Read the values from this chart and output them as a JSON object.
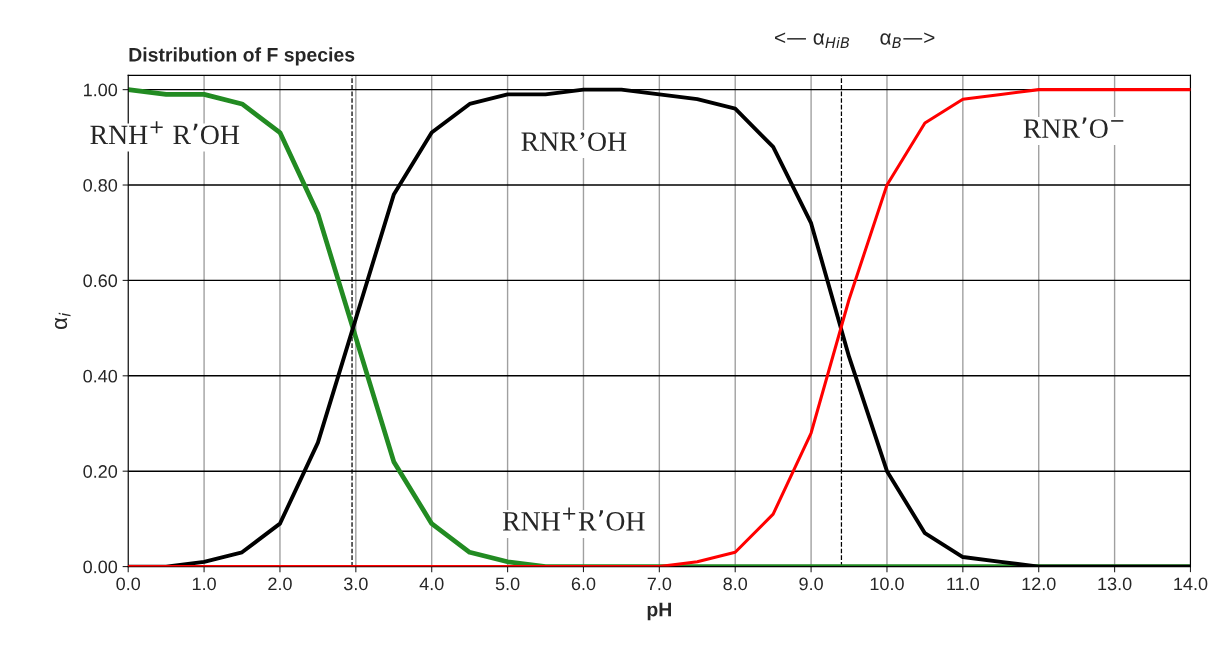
{
  "chart_data": {
    "type": "line",
    "title": "Distribution of F species",
    "xlabel": "pH",
    "ylabel": "α$_{i}$",
    "x": [
      0,
      0.5,
      1,
      1.5,
      2,
      2.5,
      3,
      3.5,
      4,
      4.5,
      5,
      5.5,
      6,
      6.5,
      7,
      7.5,
      8,
      8.5,
      9,
      9.5,
      10,
      10.5,
      11,
      11.5,
      12,
      12.5,
      13,
      13.5,
      14
    ],
    "series": [
      {
        "color": "#228b22",
        "values": [
          1.0,
          0.99,
          0.99,
          0.97,
          0.91,
          0.74,
          0.48,
          0.22,
          0.09,
          0.03,
          0.01,
          0.0,
          0.0,
          0.0,
          0.0,
          0.0,
          0.0,
          0.0,
          0.0,
          0.0,
          0.0,
          0.0,
          0.0,
          0.0,
          0.0,
          0.0,
          0.0,
          0.0,
          0.0
        ]
      },
      {
        "color": "#000000",
        "values": [
          0.0,
          0.0,
          0.01,
          0.03,
          0.09,
          0.26,
          0.52,
          0.78,
          0.91,
          0.97,
          0.99,
          0.99,
          1.0,
          1.0,
          0.99,
          0.98,
          0.96,
          0.88,
          0.72,
          0.44,
          0.2,
          0.07,
          0.02,
          0.01,
          0.0,
          0.0,
          0.0,
          0.0,
          0.0
        ]
      },
      {
        "color": "#ff0000",
        "values": [
          0.0,
          0.0,
          0.0,
          0.0,
          0.0,
          0.0,
          0.0,
          0.0,
          0.0,
          0.0,
          0.0,
          0.0,
          0.0,
          0.0,
          0.0,
          0.01,
          0.03,
          0.11,
          0.28,
          0.56,
          0.8,
          0.93,
          0.98,
          0.99,
          1.0,
          1.0,
          1.0,
          1.0,
          1.0
        ]
      }
    ],
    "xlim": [
      0,
      14
    ],
    "ylim": [
      0,
      1.03
    ],
    "xticks": [
      {
        "value": 0,
        "label": "0.0"
      },
      {
        "value": 1,
        "label": "1.0"
      },
      {
        "value": 2,
        "label": "2.0"
      },
      {
        "value": 3,
        "label": "3.0"
      },
      {
        "value": 4,
        "label": "4.0"
      },
      {
        "value": 5,
        "label": "5.0"
      },
      {
        "value": 6,
        "label": "6.0"
      },
      {
        "value": 7,
        "label": "7.0"
      },
      {
        "value": 8,
        "label": "8.0"
      },
      {
        "value": 9,
        "label": "9.0"
      },
      {
        "value": 10,
        "label": "10.0"
      },
      {
        "value": 11,
        "label": "11.0"
      },
      {
        "value": 12,
        "label": "12.0"
      },
      {
        "value": 13,
        "label": "13.0"
      },
      {
        "value": 14,
        "label": "14.0"
      }
    ],
    "yticks": [
      {
        "value": 0,
        "label": "0.00"
      },
      {
        "value": 0.2,
        "label": "0.20"
      },
      {
        "value": 0.4,
        "label": "0.40"
      },
      {
        "value": 0.6,
        "label": "0.60"
      },
      {
        "value": 0.8,
        "label": "0.80"
      },
      {
        "value": 1.0,
        "label": "1.00"
      }
    ],
    "grid": true,
    "marker": "none",
    "line_style": "solid",
    "ref_lines": [
      {
        "axis": "x",
        "value": 2.95,
        "line_style": "dashed",
        "color": "#000000"
      },
      {
        "axis": "x",
        "value": 9.4,
        "line_style": "dashed",
        "color": "#000000"
      }
    ],
    "annotations": [
      "<— α$_{HiB}$     α$_{B}$—>",
      "RNH$^{+}$ R’OH",
      "RNR’OH",
      "RNR’O$^{−}$",
      "RNH$^{+}$R’OH"
    ]
  }
}
